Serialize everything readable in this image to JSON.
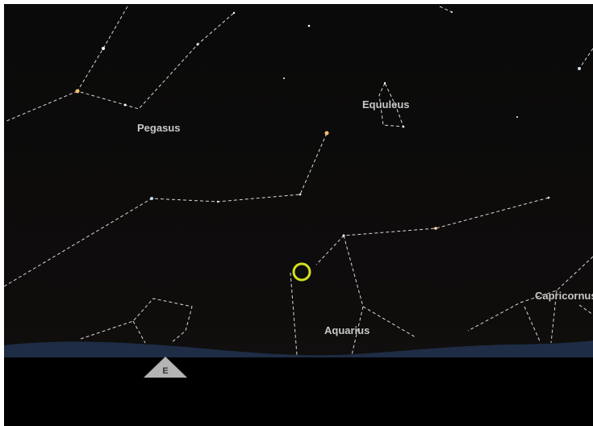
{
  "labels": {
    "pegasus": "Pegasus",
    "equuleus": "Equuleus",
    "aquarius": "Aquarius",
    "capricornus": "Capricornus"
  },
  "compass": {
    "direction": "E"
  }
}
